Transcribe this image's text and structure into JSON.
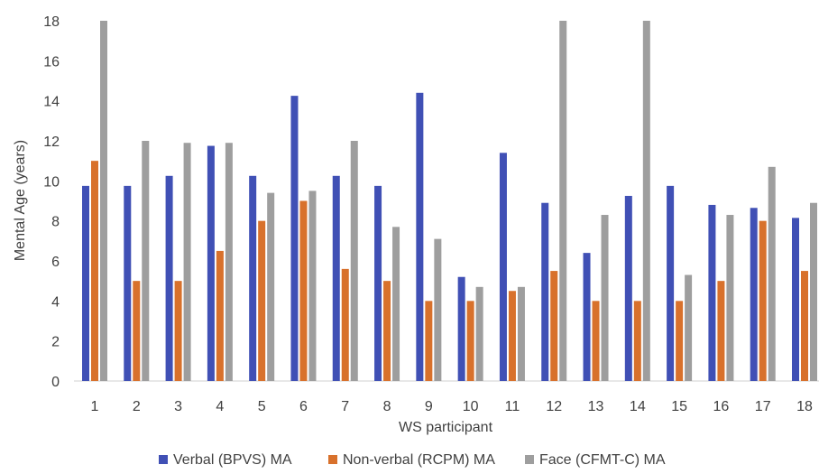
{
  "chart_data": {
    "type": "bar",
    "title": "",
    "xlabel": "WS participant",
    "ylabel": "Mental Age (years)",
    "ylim": [
      0,
      18
    ],
    "yticks": [
      0,
      2,
      4,
      6,
      8,
      10,
      12,
      14,
      16,
      18
    ],
    "grid": false,
    "legend_position": "bottom",
    "categories": [
      "1",
      "2",
      "3",
      "4",
      "5",
      "6",
      "7",
      "8",
      "9",
      "10",
      "11",
      "12",
      "13",
      "14",
      "15",
      "16",
      "17",
      "18"
    ],
    "series": [
      {
        "name": "Verbal (BPVS) MA",
        "color": "#4050b5",
        "values": [
          9.75,
          9.75,
          10.25,
          11.75,
          10.25,
          14.25,
          10.25,
          9.75,
          14.4,
          5.2,
          11.4,
          8.9,
          6.4,
          9.25,
          9.75,
          8.8,
          8.65,
          8.15
        ]
      },
      {
        "name": "Non-verbal (RCPM) MA",
        "color": "#d8712c",
        "values": [
          11,
          5,
          5,
          6.5,
          8,
          9,
          5.6,
          5,
          4,
          4,
          4.5,
          5.5,
          4,
          4,
          4,
          5,
          8,
          5.5
        ]
      },
      {
        "name": "Face (CFMT-C) MA",
        "color": "#9e9e9e",
        "values": [
          18,
          12,
          11.9,
          11.9,
          9.4,
          9.5,
          12,
          7.7,
          7.1,
          4.7,
          4.7,
          18,
          8.3,
          18,
          5.3,
          8.3,
          10.7,
          8.9
        ]
      }
    ]
  }
}
